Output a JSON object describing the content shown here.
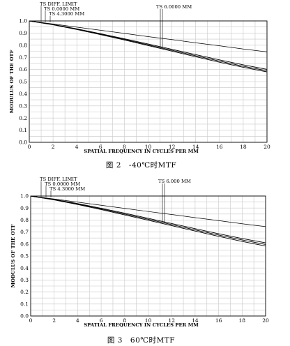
{
  "chart_data": [
    {
      "type": "line",
      "caption": "图 2　-40℃时MTF",
      "xlabel": "SPATIAL FREQUENCY IN CYCLES PER MM",
      "ylabel": "MODULUS OF THE OTF",
      "xlim": [
        0,
        20
      ],
      "ylim": [
        0,
        1
      ],
      "x_ticks": [
        0,
        2,
        4,
        6,
        8,
        10,
        12,
        14,
        16,
        18,
        20
      ],
      "y_ticks": [
        "0.0",
        "0.1",
        "0.2",
        "0.3",
        "0.4",
        "0.5",
        "0.6",
        "0.7",
        "0.8",
        "0.9",
        "1.0"
      ],
      "grid": true,
      "legend_labels": [
        "TS DIFF. LIMIT",
        "TS 0.0000 MM",
        "TS 4.3000 MM",
        "TS 6.0000 MM"
      ],
      "x": [
        0,
        2,
        4,
        6,
        8,
        10,
        12,
        14,
        16,
        18,
        20
      ],
      "series": [
        {
          "name": "TS DIFF. LIMIT",
          "values": [
            1.0,
            0.975,
            0.949,
            0.923,
            0.897,
            0.871,
            0.846,
            0.82,
            0.795,
            0.769,
            0.745
          ]
        },
        {
          "name": "TS 0.0000 MM",
          "values": [
            1.0,
            0.971,
            0.935,
            0.895,
            0.853,
            0.81,
            0.766,
            0.722,
            0.679,
            0.638,
            0.601
          ]
        },
        {
          "name": "TS 4.3000 MM",
          "values": [
            1.0,
            0.97,
            0.932,
            0.891,
            0.848,
            0.803,
            0.758,
            0.713,
            0.669,
            0.627,
            0.59
          ]
        },
        {
          "name": "TS 6.0000 MM",
          "values": [
            1.0,
            0.968,
            0.929,
            0.887,
            0.843,
            0.797,
            0.751,
            0.705,
            0.66,
            0.618,
            0.58
          ]
        }
      ]
    },
    {
      "type": "line",
      "caption": "图 3　60℃时MTF",
      "xlabel": "SPATIAL FREQUENCY IN CYCLES PER MM",
      "ylabel": "MODULUS OF THE OTF",
      "xlim": [
        0,
        20
      ],
      "ylim": [
        0,
        1
      ],
      "x_ticks": [
        0,
        2,
        4,
        6,
        8,
        10,
        12,
        14,
        16,
        18,
        20
      ],
      "y_ticks": [
        "0.0",
        "0.1",
        "0.2",
        "0.3",
        "0.4",
        "0.5",
        "0.6",
        "0.7",
        "0.8",
        "0.9",
        "1.0"
      ],
      "grid": true,
      "legend_labels": [
        "TS DIFF. LIMIT",
        "TS 0.0000 MM",
        "TS 4.3000 MM",
        "TS 6.000 MM"
      ],
      "x": [
        0,
        2,
        4,
        6,
        8,
        10,
        12,
        14,
        16,
        18,
        20
      ],
      "series": [
        {
          "name": "TS DIFF. LIMIT",
          "values": [
            1.0,
            0.975,
            0.949,
            0.923,
            0.897,
            0.871,
            0.846,
            0.82,
            0.795,
            0.769,
            0.745
          ]
        },
        {
          "name": "TS 0.0000 MM",
          "values": [
            1.0,
            0.972,
            0.937,
            0.898,
            0.857,
            0.814,
            0.771,
            0.728,
            0.686,
            0.646,
            0.61
          ]
        },
        {
          "name": "TS 4.3000 MM",
          "values": [
            1.0,
            0.97,
            0.933,
            0.893,
            0.85,
            0.806,
            0.762,
            0.718,
            0.675,
            0.634,
            0.596
          ]
        },
        {
          "name": "TS 6.000 MM",
          "values": [
            1.0,
            0.968,
            0.929,
            0.887,
            0.843,
            0.798,
            0.753,
            0.708,
            0.664,
            0.622,
            0.583
          ]
        }
      ]
    }
  ]
}
